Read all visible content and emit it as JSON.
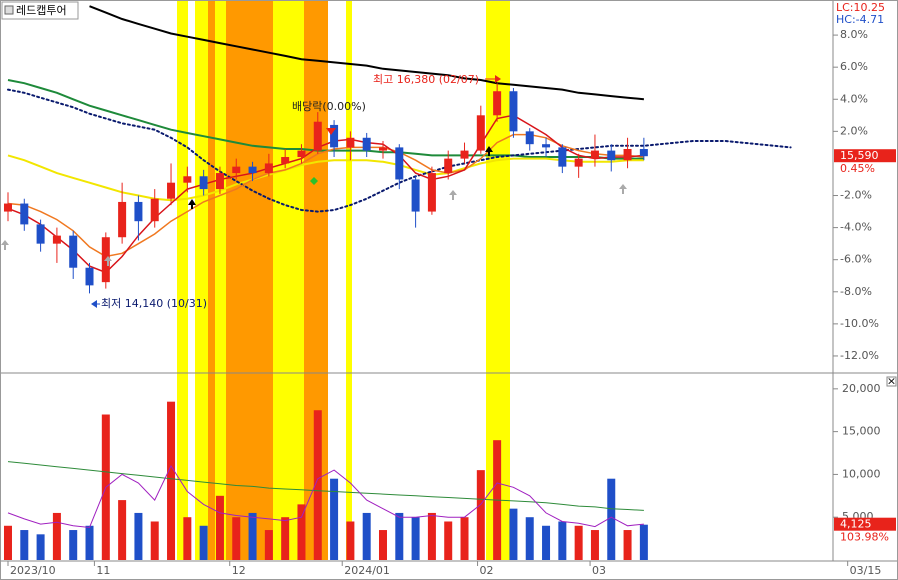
{
  "chart_data": [
    {
      "type": "candlestick",
      "title": "레드캡투어",
      "info": [
        "LC:10.25",
        "HC:-4.71"
      ],
      "annotations": [
        "최고 16,380 (02/07)",
        "배당락(0.00%)",
        "최저 14,140 (10/31)"
      ],
      "price_label": "15,590",
      "current": {
        "value": 0.45,
        "label": "0.45%"
      },
      "up_color": "#e8231b",
      "down_color": "#1f4fc8",
      "xlim": [
        -0.49,
        50.6
      ],
      "xticks": [
        {
          "value": 0,
          "label": "2023/10"
        },
        {
          "value": 5.3,
          "label": "11"
        },
        {
          "value": 13.6,
          "label": "12"
        },
        {
          "value": 20.5,
          "label": "2024/01"
        },
        {
          "value": 28.8,
          "label": "02"
        },
        {
          "value": 35.7,
          "label": "03"
        },
        {
          "value": 51.5,
          "label": "03/15"
        }
      ],
      "ylim": [
        -13,
        10
      ],
      "yticks": [
        {
          "value": 8,
          "label": "8.0%"
        },
        {
          "value": 6,
          "label": "6.0%"
        },
        {
          "value": 4,
          "label": "4.0%"
        },
        {
          "value": 2,
          "label": "2.0%"
        },
        {
          "value": -2,
          "label": "-2.0%"
        },
        {
          "value": -4,
          "label": "-4.0%"
        },
        {
          "value": -6,
          "label": "-6.0%"
        },
        {
          "value": -8,
          "label": "-8.0%"
        },
        {
          "value": -10,
          "label": "-10.0%"
        },
        {
          "value": -12,
          "label": "-12.0%"
        }
      ],
      "open": [
        -3.0,
        -2.5,
        -3.8,
        -5.0,
        -4.5,
        -6.5,
        -7.4,
        -4.6,
        -2.4,
        -3.6,
        -2.2,
        -1.2,
        -0.8,
        -1.6,
        -0.6,
        -0.2,
        -0.6,
        0.0,
        0.4,
        0.8,
        2.4,
        1.0,
        1.6,
        0.8,
        1.0,
        -1.0,
        -3.0,
        -0.6,
        0.3,
        0.8,
        3.0,
        4.5,
        2.0,
        1.2,
        1.0,
        -0.2,
        0.3,
        0.8,
        0.2,
        0.9
      ],
      "close": [
        -2.5,
        -3.8,
        -5.0,
        -4.5,
        -6.5,
        -7.6,
        -4.6,
        -2.4,
        -3.6,
        -2.2,
        -1.2,
        -0.8,
        -1.6,
        -0.6,
        -0.2,
        -0.6,
        0.0,
        0.4,
        0.8,
        2.6,
        1.0,
        1.6,
        0.8,
        1.0,
        -1.0,
        -3.0,
        -0.6,
        0.3,
        0.8,
        3.0,
        4.5,
        2.0,
        1.2,
        1.0,
        -0.2,
        0.3,
        0.8,
        0.2,
        0.9,
        0.45
      ],
      "high": [
        -1.8,
        -2.2,
        -3.5,
        -4.0,
        -4.2,
        -6.2,
        -4.3,
        -1.2,
        -2.0,
        -1.6,
        0.0,
        -0.2,
        -0.4,
        -0.2,
        0.3,
        0.1,
        0.6,
        0.9,
        1.2,
        3.2,
        2.7,
        2.0,
        1.9,
        1.4,
        1.2,
        -0.8,
        -0.2,
        0.8,
        1.3,
        3.6,
        5.0,
        4.7,
        2.2,
        1.6,
        1.2,
        0.6,
        1.8,
        1.2,
        1.6,
        1.6
      ],
      "low": [
        -3.6,
        -4.2,
        -5.5,
        -6.2,
        -7.2,
        -8.1,
        -7.8,
        -5.0,
        -4.8,
        -4.0,
        -2.6,
        -1.8,
        -2.0,
        -1.9,
        -1.0,
        -1.1,
        -0.8,
        -0.3,
        0.0,
        0.6,
        0.4,
        0.2,
        0.4,
        0.3,
        -1.6,
        -4.0,
        -3.2,
        -1.0,
        0.0,
        0.6,
        2.6,
        1.6,
        0.8,
        0.4,
        -0.6,
        -0.9,
        -0.2,
        -0.5,
        -0.3,
        0.2
      ],
      "series": [
        {
          "color": "#000000",
          "width": 2,
          "values": [
            null,
            null,
            null,
            null,
            null,
            9.8,
            9.4,
            9.0,
            8.7,
            8.4,
            8.1,
            7.9,
            7.7,
            7.5,
            7.3,
            7.1,
            6.9,
            6.7,
            6.5,
            6.4,
            6.3,
            6.2,
            6.1,
            5.9,
            5.8,
            5.7,
            5.6,
            5.5,
            5.3,
            5.2,
            5.0,
            4.9,
            4.8,
            4.7,
            4.6,
            4.4,
            4.3,
            4.2,
            4.1,
            4.0,
            null,
            null,
            null,
            null,
            null,
            null,
            null,
            null,
            null
          ]
        },
        {
          "color": "#1e8a3a",
          "width": 2,
          "values": [
            5.2,
            5.0,
            4.7,
            4.4,
            4.0,
            3.6,
            3.3,
            3.0,
            2.7,
            2.4,
            2.1,
            1.9,
            1.7,
            1.5,
            1.3,
            1.1,
            1.0,
            0.9,
            0.9,
            0.8,
            0.8,
            0.8,
            0.8,
            0.7,
            0.7,
            0.6,
            0.5,
            0.5,
            0.5,
            0.5,
            0.5,
            0.5,
            0.4,
            0.4,
            0.4,
            0.4,
            0.4,
            0.3,
            0.3,
            0.3,
            null,
            null,
            null,
            null,
            null,
            null,
            null,
            null,
            null
          ]
        },
        {
          "color": "#f2e600",
          "width": 2,
          "values": [
            0.5,
            0.2,
            -0.2,
            -0.6,
            -0.9,
            -1.2,
            -1.5,
            -1.8,
            -2.0,
            -2.2,
            -2.3,
            -2.2,
            -2.0,
            -1.7,
            -1.3,
            -1.0,
            -0.7,
            -0.4,
            -0.1,
            0.1,
            0.2,
            0.2,
            0.2,
            0.1,
            -0.1,
            -0.4,
            -0.7,
            -0.6,
            -0.3,
            0.0,
            0.2,
            0.3,
            0.3,
            0.3,
            0.2,
            0.1,
            0.1,
            0.1,
            0.2,
            0.2,
            null,
            null,
            null,
            null,
            null,
            null,
            null,
            null,
            null
          ]
        },
        {
          "color": "#0a1a6e",
          "width": 2,
          "style": "dotted",
          "values": [
            4.6,
            4.4,
            4.1,
            3.8,
            3.5,
            3.1,
            2.8,
            2.5,
            2.3,
            2.1,
            1.6,
            1.0,
            0.2,
            -0.5,
            -1.1,
            -1.7,
            -2.2,
            -2.6,
            -2.9,
            -3.0,
            -2.9,
            -2.6,
            -2.2,
            -1.7,
            -1.2,
            -0.8,
            -0.5,
            -0.2,
            0.0,
            0.2,
            0.4,
            0.5,
            0.6,
            0.7,
            0.8,
            0.9,
            1.0,
            1.1,
            1.1,
            1.1,
            1.2,
            1.3,
            1.4,
            1.4,
            1.4,
            1.3,
            1.2,
            1.1,
            1.0
          ]
        },
        {
          "color": "#f07820",
          "width": 1.5,
          "values": [
            -2.5,
            -2.6,
            -3.0,
            -3.5,
            -4.2,
            -5.2,
            -5.8,
            -5.6,
            -5.0,
            -4.4,
            -3.6,
            -3.0,
            -2.4,
            -2.0,
            -1.6,
            -1.0,
            -0.6,
            -0.4,
            0.0,
            0.6,
            0.9,
            1.0,
            1.0,
            1.0,
            0.7,
            0.2,
            -0.4,
            -0.6,
            -0.4,
            0.3,
            1.3,
            1.8,
            1.8,
            1.6,
            1.1,
            0.8,
            0.6,
            0.5,
            0.5,
            0.4,
            null,
            null,
            null,
            null,
            null,
            null,
            null,
            null,
            null
          ]
        },
        {
          "color": "#d8141a",
          "width": 1.5,
          "values": [
            -2.8,
            -3.2,
            -3.8,
            -4.6,
            -5.4,
            -6.4,
            -6.8,
            -5.8,
            -4.5,
            -3.4,
            -2.5,
            -1.6,
            -1.3,
            -1.0,
            -0.8,
            -0.6,
            -0.3,
            0.0,
            0.3,
            1.0,
            1.4,
            1.5,
            1.3,
            1.2,
            0.5,
            -0.6,
            -1.0,
            -0.8,
            -0.4,
            1.2,
            2.8,
            3.0,
            2.4,
            1.8,
            1.0,
            0.5,
            0.3,
            0.4,
            0.4,
            0.5,
            null,
            null,
            null,
            null,
            null,
            null,
            null,
            null,
            null
          ]
        }
      ]
    },
    {
      "type": "bar",
      "ylim": [
        0,
        21500
      ],
      "yticks": [
        {
          "value": 20000,
          "label": "20,000"
        },
        {
          "value": 15000,
          "label": "15,000"
        },
        {
          "value": 10000,
          "label": "10,000"
        },
        {
          "value": 5000,
          "label": "5,000"
        }
      ],
      "values": [
        4000,
        3500,
        3000,
        5500,
        3500,
        4000,
        17000,
        7000,
        5500,
        4500,
        18500,
        5000,
        4000,
        7500,
        5000,
        5500,
        3500,
        5000,
        6500,
        17500,
        9500,
        4500,
        5500,
        3500,
        5500,
        5000,
        5500,
        4500,
        5000,
        10500,
        14000,
        6000,
        5000,
        4000,
        4500,
        4000,
        3500,
        9500,
        3500,
        4125
      ],
      "current": {
        "value": 4125,
        "label": "4,125"
      },
      "ratio_label": "103.98%",
      "series": [
        {
          "color": "#2e8b3a",
          "values": [
            11500,
            11300,
            11100,
            10900,
            10700,
            10500,
            10300,
            10100,
            9900,
            9700,
            9500,
            9300,
            9100,
            8900,
            8700,
            8600,
            8400,
            8300,
            8200,
            8100,
            8000,
            7900,
            7800,
            7700,
            7600,
            7500,
            7400,
            7300,
            7200,
            7100,
            7000,
            6900,
            6800,
            6700,
            6500,
            6300,
            6200,
            6000,
            5900,
            5800
          ]
        },
        {
          "color": "#a020c0",
          "values": [
            5500,
            4800,
            4200,
            4400,
            4000,
            3800,
            8500,
            10000,
            9000,
            7000,
            11000,
            8000,
            6500,
            5500,
            5200,
            5000,
            4800,
            4600,
            5000,
            9500,
            10500,
            9000,
            7000,
            6000,
            5000,
            5000,
            5200,
            5000,
            5000,
            6500,
            9000,
            8500,
            7500,
            5500,
            4500,
            4300,
            3900,
            5000,
            4000,
            4200
          ]
        }
      ]
    }
  ]
}
